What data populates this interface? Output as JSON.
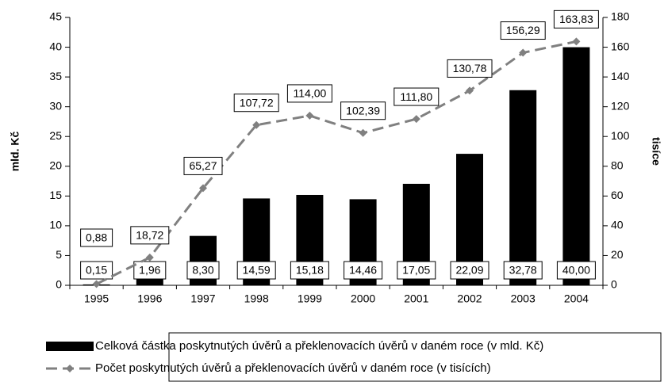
{
  "chart_data": {
    "type": "combo",
    "categories": [
      "1995",
      "1996",
      "1997",
      "1998",
      "1999",
      "2000",
      "2001",
      "2002",
      "2003",
      "2004"
    ],
    "ylabel": "mld. Kč",
    "y2label": "tisíce",
    "ylim": [
      0,
      45
    ],
    "yticks": [
      0,
      5,
      10,
      15,
      20,
      25,
      30,
      35,
      40,
      45
    ],
    "y2lim": [
      0,
      180
    ],
    "y2ticks": [
      0,
      20,
      40,
      60,
      80,
      100,
      120,
      140,
      160,
      180
    ],
    "series": [
      {
        "name": "Celková částka poskytnutých úvěrů a překlenovacích úvěrů v daném roce (v mld. Kč)",
        "type": "bar",
        "color": "#000000",
        "axis": "y",
        "values": [
          0.15,
          1.96,
          8.3,
          14.59,
          15.18,
          14.46,
          17.05,
          22.09,
          32.78,
          40.0
        ],
        "value_labels": [
          "0,15",
          "1,96",
          "8,30",
          "14,59",
          "15,18",
          "14,46",
          "17,05",
          "22,09",
          "32,78",
          "40,00"
        ]
      },
      {
        "name": "Počet poskytnutých úvěrů a překlenovacích úvěrů v daném roce (v tisících)",
        "type": "line",
        "color": "#808080",
        "axis": "y2",
        "values": [
          0.88,
          18.72,
          65.27,
          107.72,
          114.0,
          102.39,
          111.8,
          130.78,
          156.29,
          163.83
        ],
        "value_labels": [
          "0,88",
          "18,72",
          "65,27",
          "107,72",
          "114,00",
          "102,39",
          "111,80",
          "130,78",
          "156,29",
          "163,83"
        ]
      }
    ]
  }
}
